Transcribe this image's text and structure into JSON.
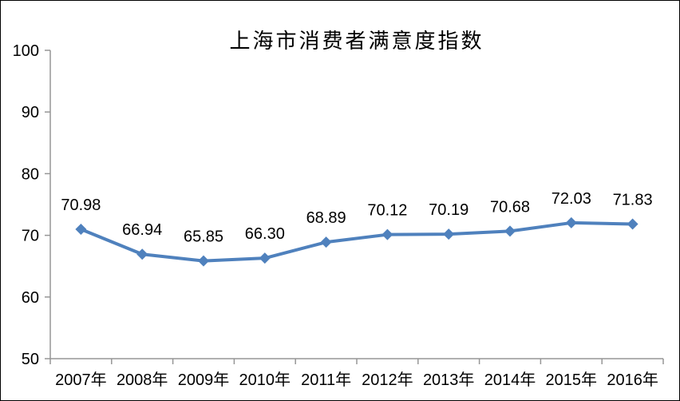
{
  "chart_data": {
    "type": "line",
    "title": "上海市消费者满意度指数",
    "categories": [
      "2007年",
      "2008年",
      "2009年",
      "2010年",
      "2011年",
      "2012年",
      "2013年",
      "2014年",
      "2015年",
      "2016年"
    ],
    "values": [
      70.98,
      66.94,
      65.85,
      66.3,
      68.89,
      70.12,
      70.19,
      70.68,
      72.03,
      71.83
    ],
    "point_labels": [
      "70.98",
      "66.94",
      "65.85",
      "66.30",
      "68.89",
      "70.12",
      "70.19",
      "70.68",
      "72.03",
      "71.83"
    ],
    "xlabel": "",
    "ylabel": "",
    "ylim": [
      50,
      100
    ],
    "yticks": [
      50,
      60,
      70,
      80,
      90,
      100
    ],
    "grid": false,
    "legend": "none",
    "marker": "diamond",
    "series_color": "#4F81BD",
    "axis_color": "#969696",
    "text_color": "#000000",
    "background_color": "#FFFFFF"
  }
}
